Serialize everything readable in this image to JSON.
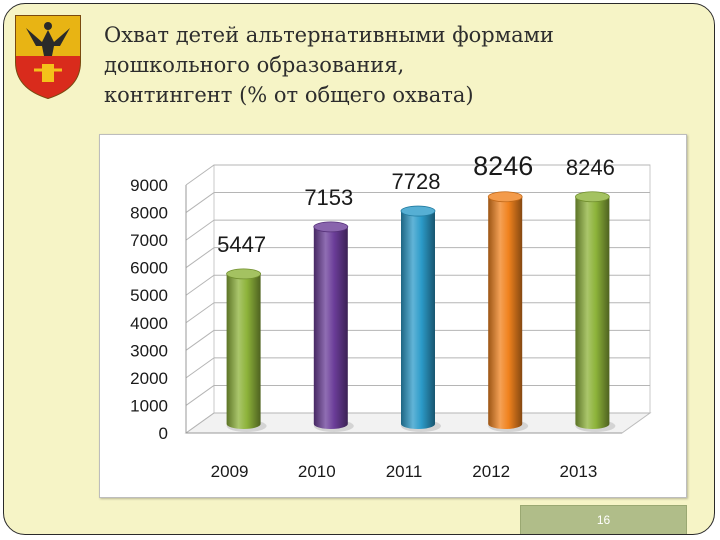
{
  "slide": {
    "title": "Охват детей альтернативными формами\nдошкольного образования,\nконтингент (% от общего охвата)",
    "page_number": "16",
    "emblem_icon": "coat-of-arms-icon"
  },
  "colors": {
    "background": "#f6f4c6",
    "chart_panel": "#ffffff"
  },
  "chart_data": {
    "type": "bar",
    "categories": [
      "2009",
      "2010",
      "2011",
      "2012",
      "2013"
    ],
    "values": [
      5447,
      7153,
      7728,
      8246,
      8246
    ],
    "data_labels": [
      "5447",
      "7153",
      "7728",
      "8246",
      "8246"
    ],
    "bar_colors": [
      "#8db33a",
      "#6b3d99",
      "#2c9bc9",
      "#f0821e",
      "#8db33a"
    ],
    "title": "",
    "xlabel": "",
    "ylabel": "",
    "ylim": [
      0,
      9000
    ],
    "yticks": [
      0,
      1000,
      2000,
      3000,
      4000,
      5000,
      6000,
      7000,
      8000,
      9000
    ],
    "grid": true,
    "legend": "none",
    "style": "3d-cylinder"
  }
}
